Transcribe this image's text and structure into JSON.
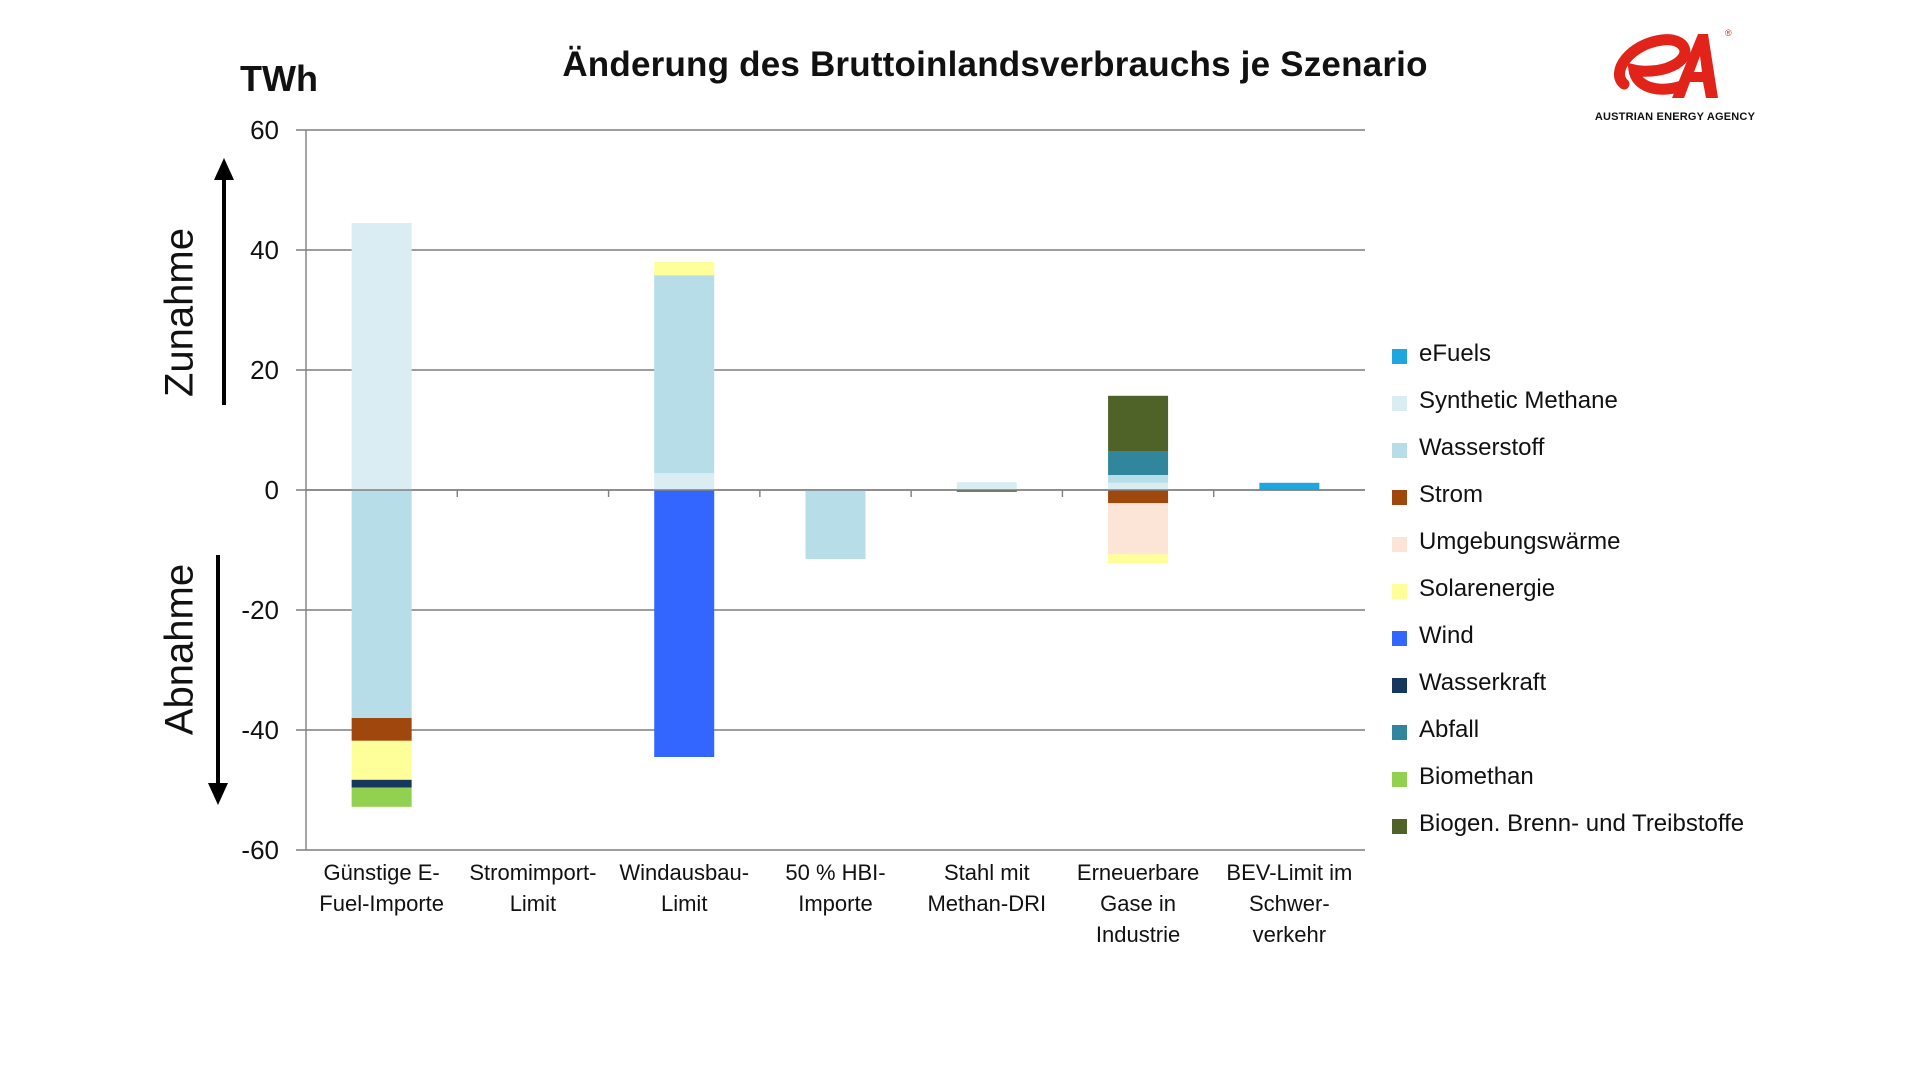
{
  "brand": {
    "name": "AUSTRIAN ENERGY AGENCY",
    "logo_letters": "eA",
    "registered_mark": "®",
    "color": "#e2231a"
  },
  "chart_data": {
    "type": "bar",
    "stacked": true,
    "title": "Änderung des Bruttoinlandsverbrauchs je Szenario",
    "ylabel": "TWh",
    "ylim": [
      -60,
      60
    ],
    "yticks": [
      60,
      40,
      20,
      0,
      -20,
      -40,
      -60
    ],
    "grid": true,
    "legend_position": "right",
    "direction_labels": {
      "up": "Zunahme",
      "down": "Abnahme"
    },
    "categories": [
      [
        "Günstige E-",
        "Fuel-Importe"
      ],
      [
        "Stromimport-",
        "Limit"
      ],
      [
        "Windausbau-",
        "Limit"
      ],
      [
        "50 % HBI-",
        "Importe"
      ],
      [
        "Stahl mit",
        "Methan-DRI"
      ],
      [
        "Erneuerbare",
        "Gase in",
        "Industrie"
      ],
      [
        "BEV-Limit im",
        "Schwer-",
        "verkehr"
      ]
    ],
    "series": [
      {
        "name": "eFuels",
        "color": "#1ea7df",
        "values": [
          0,
          0,
          0,
          0,
          0,
          0,
          1.2
        ]
      },
      {
        "name": "Synthetic Methane",
        "color": "#daedf3",
        "values": [
          44.5,
          0,
          2.8,
          0,
          1.3,
          1.2,
          0
        ]
      },
      {
        "name": "Wasserstoff",
        "color": "#b7dde8",
        "values": [
          -38,
          0,
          33,
          -11.5,
          0,
          1.3,
          0
        ]
      },
      {
        "name": "Strom",
        "color": "#a0470d",
        "values": [
          -3.8,
          0,
          0,
          0,
          0,
          -2.2,
          0
        ]
      },
      {
        "name": "Umgebungswärme",
        "color": "#fce4d6",
        "values": [
          0,
          0,
          0,
          0,
          0,
          -8.5,
          0
        ]
      },
      {
        "name": "Solarenergie",
        "color": "#ffff99",
        "values": [
          -6.5,
          0,
          2.2,
          0,
          0,
          -1.5,
          0
        ]
      },
      {
        "name": "Wind",
        "color": "#3366ff",
        "values": [
          0,
          0,
          -44.5,
          0,
          0,
          0,
          0
        ]
      },
      {
        "name": "Wasserkraft",
        "color": "#17375e",
        "values": [
          -1.3,
          0,
          0,
          0,
          0,
          0,
          0
        ]
      },
      {
        "name": "Abfall",
        "color": "#31859c",
        "values": [
          0,
          0,
          0,
          0,
          0,
          4.0,
          0
        ]
      },
      {
        "name": "Biomethan",
        "color": "#92d050",
        "values": [
          -3.2,
          0,
          0,
          0,
          0,
          0,
          0
        ]
      },
      {
        "name": "Biogen. Brenn- und Treibstoffe",
        "color": "#4f6228",
        "values": [
          0,
          0,
          0,
          0,
          -0.3,
          9.2,
          0
        ]
      }
    ]
  }
}
